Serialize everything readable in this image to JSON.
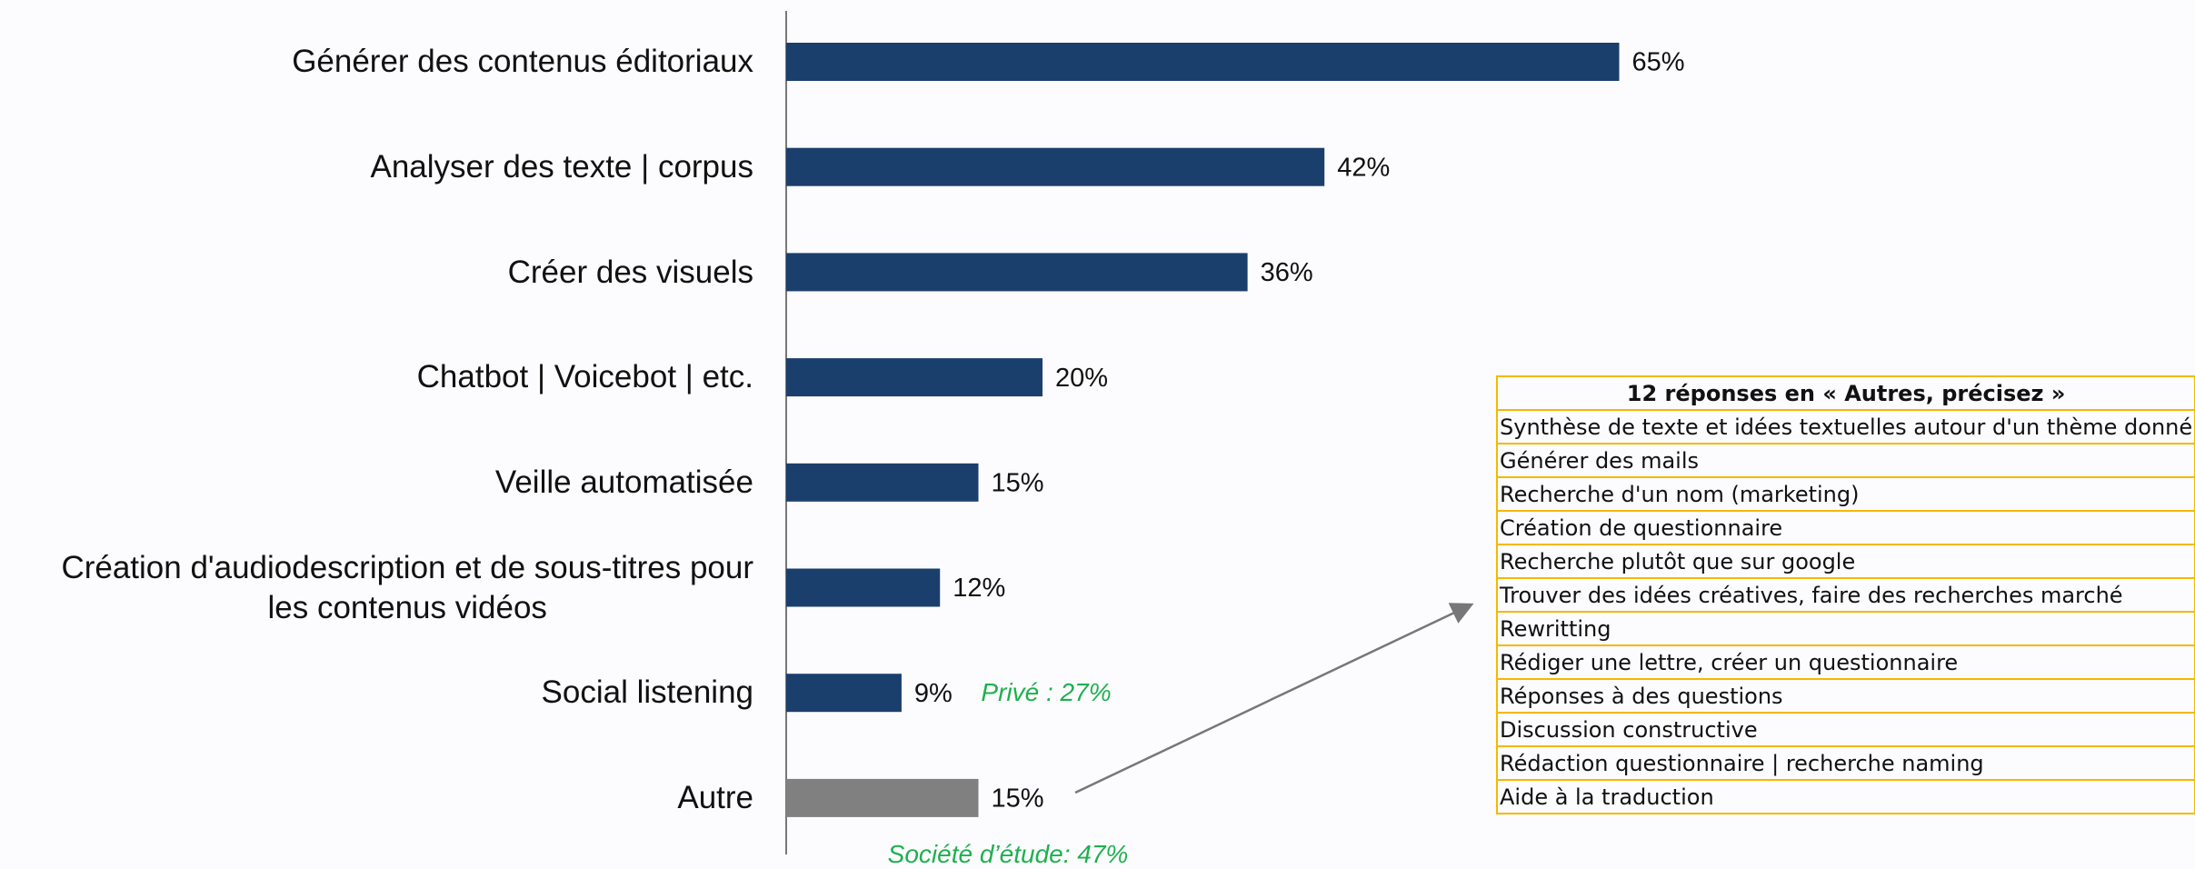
{
  "chart_data": {
    "type": "bar",
    "orientation": "horizontal",
    "categories": [
      "Générer des contenus éditoriaux",
      "Analyser des texte | corpus",
      "Créer des visuels",
      "Chatbot | Voicebot | etc.",
      "Veille automatisée",
      "Création d'audiodescription et de sous-titres pour\nles contenus vidéos",
      "Social listening",
      "Autre"
    ],
    "values": [
      65,
      42,
      36,
      20,
      15,
      12,
      9,
      15
    ],
    "value_labels": [
      "65%",
      "42%",
      "36%",
      "20%",
      "15%",
      "12%",
      "9%",
      "15%"
    ],
    "colors": [
      "#1b3f6c",
      "#1b3f6c",
      "#1b3f6c",
      "#1b3f6c",
      "#1b3f6c",
      "#1b3f6c",
      "#1b3f6c",
      "#808080"
    ],
    "xlim": [
      0,
      100
    ],
    "annotations": [
      "Privé : 27%",
      "Société d’étude: 47%"
    ]
  },
  "table": {
    "title": "12 réponses en « Autres, précisez »",
    "rows": [
      "Synthèse de texte et idées textuelles autour d'un thème donné",
      "Générer des mails",
      "Recherche d'un nom (marketing)",
      "Création de questionnaire",
      "Recherche plutôt que sur google",
      "Trouver des idées créatives, faire des recherches marché",
      "Rewritting",
      "Rédiger une lettre, créer un questionnaire",
      "Réponses à des questions",
      "Discussion constructive",
      "Rédaction questionnaire | recherche naming",
      "Aide à la traduction"
    ]
  }
}
